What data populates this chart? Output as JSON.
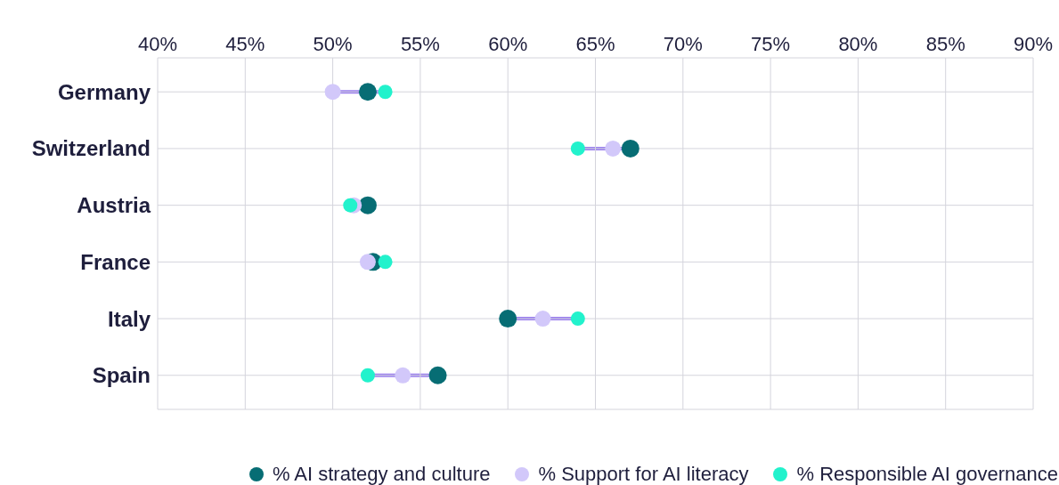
{
  "chart_data": {
    "type": "scatter",
    "orientation": "horizontal",
    "categories": [
      "Germany",
      "Switzerland",
      "Austria",
      "France",
      "Italy",
      "Spain"
    ],
    "series": [
      {
        "name": "% AI strategy and culture",
        "color": "#076d74",
        "values": [
          52,
          67,
          52,
          52.3,
          60,
          56
        ]
      },
      {
        "name": "% Support for AI literacy",
        "color": "#d2c8fa",
        "values": [
          50,
          66,
          51.2,
          52,
          62,
          54
        ]
      },
      {
        "name": "% Responsible AI governance",
        "color": "#22f2cc",
        "values": [
          53,
          64,
          51,
          53,
          64,
          52
        ]
      }
    ],
    "xlim": [
      40,
      90
    ],
    "xticks": [
      {
        "value": 40,
        "label": "40%"
      },
      {
        "value": 45,
        "label": "45%"
      },
      {
        "value": 50,
        "label": "50%"
      },
      {
        "value": 55,
        "label": "55%"
      },
      {
        "value": 60,
        "label": "60%"
      },
      {
        "value": 65,
        "label": "65%"
      },
      {
        "value": 70,
        "label": "70%"
      },
      {
        "value": 75,
        "label": "75%"
      },
      {
        "value": 80,
        "label": "80%"
      },
      {
        "value": 85,
        "label": "85%"
      },
      {
        "value": 90,
        "label": "90%"
      }
    ],
    "grid": true,
    "legend": "bottom",
    "marker": "circle"
  }
}
